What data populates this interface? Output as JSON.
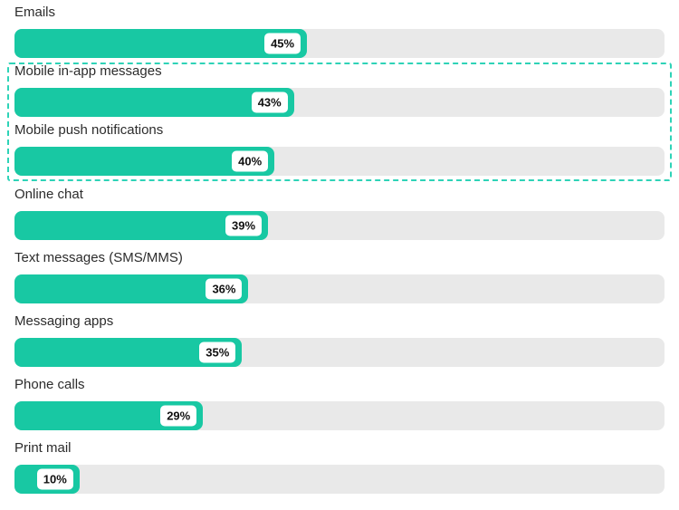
{
  "chart_data": {
    "type": "bar",
    "orientation": "horizontal",
    "categories": [
      "Emails",
      "Mobile in-app messages",
      "Mobile push notifications",
      "Online chat",
      "Text messages (SMS/MMS)",
      "Messaging apps",
      "Phone calls",
      "Print mail"
    ],
    "values": [
      45,
      43,
      40,
      39,
      36,
      35,
      29,
      10
    ],
    "value_labels": [
      "45%",
      "43%",
      "40%",
      "39%",
      "36%",
      "35%",
      "29%",
      "10%"
    ],
    "xlim": [
      0,
      100
    ],
    "title": "",
    "xlabel": "",
    "ylabel": "",
    "grid": false,
    "legend": false,
    "highlight_range": [
      1,
      2
    ],
    "highlighted_categories": [
      "Mobile in-app messages",
      "Mobile push notifications"
    ]
  },
  "colors": {
    "bar_fill": "#18c8a3",
    "bar_track": "#e9e9e9",
    "highlight_border": "#2ed3b7",
    "label_text": "#2c2c2c",
    "badge_background": "#ffffff",
    "badge_text": "#111111"
  }
}
